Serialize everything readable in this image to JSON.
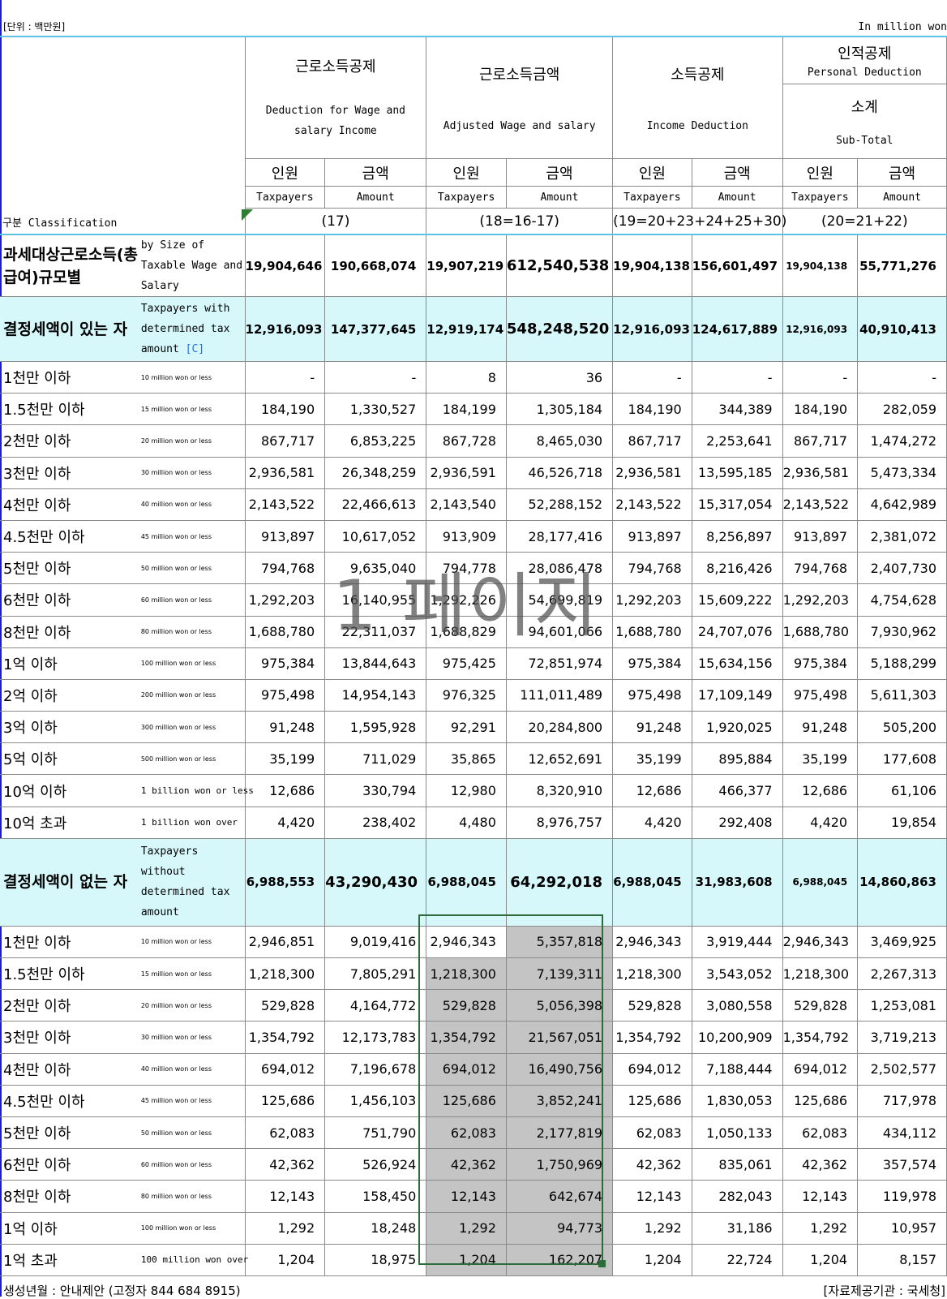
{
  "unit": {
    "ko": "[단위 : 백만원]",
    "en": "In million won"
  },
  "columns": {
    "c1": {
      "ko": "근로소득공제",
      "en": "Deduction for Wage and salary Income",
      "rule": "(17)"
    },
    "c2": {
      "ko": "근로소득금액",
      "en": "Adjusted Wage and salary",
      "rule": "(18=16-17)"
    },
    "c3": {
      "ko": "소득공제",
      "en": "Income Deduction",
      "rule": "(19=20+23+24+25+30)"
    },
    "c4": {
      "ko": "인적공제",
      "en": "Personal Deduction",
      "sub_ko": "소계",
      "sub_en": "Sub-Total",
      "rule": "(20=21+22)"
    },
    "sub": {
      "taxpayers_ko": "인원",
      "taxpayers_en": "Taxpayers",
      "amount_ko": "금액",
      "amount_en": "Amount"
    },
    "classification": "구분 Classification"
  },
  "rows": [
    {
      "ko": "과세대상근로소득(총급여)규모별",
      "en": "by Size of Taxable Wage and Salary",
      "v": [
        "19,904,646",
        "190,668,074",
        "19,907,219",
        "612,540,538",
        "19,904,138",
        "156,601,497",
        "19,904,138",
        "55,771,276"
      ]
    },
    {
      "ko": "결정세액이 있는 자",
      "en": "Taxpayers with determined tax amount",
      "tag": "[C]",
      "v": [
        "12,916,093",
        "147,377,645",
        "12,919,174",
        "548,248,520",
        "12,916,093",
        "124,617,889",
        "12,916,093",
        "40,910,413"
      ]
    },
    {
      "ko": "1천만 이하",
      "en": "10 million won or less",
      "v": [
        "-",
        "-",
        "8",
        "36",
        "-",
        "-",
        "-",
        "-"
      ]
    },
    {
      "ko": "1.5천만 이하",
      "en": "15 million won or less",
      "v": [
        "184,190",
        "1,330,527",
        "184,199",
        "1,305,184",
        "184,190",
        "344,389",
        "184,190",
        "282,059"
      ]
    },
    {
      "ko": "2천만 이하",
      "en": "20 million won or less",
      "v": [
        "867,717",
        "6,853,225",
        "867,728",
        "8,465,030",
        "867,717",
        "2,253,641",
        "867,717",
        "1,474,272"
      ]
    },
    {
      "ko": "3천만 이하",
      "en": "30 million won or less",
      "v": [
        "2,936,581",
        "26,348,259",
        "2,936,591",
        "46,526,718",
        "2,936,581",
        "13,595,185",
        "2,936,581",
        "5,473,334"
      ]
    },
    {
      "ko": "4천만 이하",
      "en": "40 million won or less",
      "v": [
        "2,143,522",
        "22,466,613",
        "2,143,540",
        "52,288,152",
        "2,143,522",
        "15,317,054",
        "2,143,522",
        "4,642,989"
      ]
    },
    {
      "ko": "4.5천만 이하",
      "en": "45 million won or less",
      "v": [
        "913,897",
        "10,617,052",
        "913,909",
        "28,177,416",
        "913,897",
        "8,256,897",
        "913,897",
        "2,381,072"
      ]
    },
    {
      "ko": "5천만 이하",
      "en": "50 million won or less",
      "v": [
        "794,768",
        "9,635,040",
        "794,778",
        "28,086,478",
        "794,768",
        "8,216,426",
        "794,768",
        "2,407,730"
      ]
    },
    {
      "ko": "6천만 이하",
      "en": "60 million won or less",
      "v": [
        "1,292,203",
        "16,140,955",
        "1,292,226",
        "54,699,819",
        "1,292,203",
        "15,609,222",
        "1,292,203",
        "4,754,628"
      ]
    },
    {
      "ko": "8천만 이하",
      "en": "80 million won or less",
      "v": [
        "1,688,780",
        "22,311,037",
        "1,688,829",
        "94,601,066",
        "1,688,780",
        "24,707,076",
        "1,688,780",
        "7,930,962"
      ]
    },
    {
      "ko": "1억 이하",
      "en": "100 million won or less",
      "v": [
        "975,384",
        "13,844,643",
        "975,425",
        "72,851,974",
        "975,384",
        "15,634,156",
        "975,384",
        "5,188,299"
      ]
    },
    {
      "ko": "2억 이하",
      "en": "200 million won or less",
      "v": [
        "975,498",
        "14,954,143",
        "976,325",
        "111,011,489",
        "975,498",
        "17,109,149",
        "975,498",
        "5,611,303"
      ]
    },
    {
      "ko": "3억 이하",
      "en": "300 million won or less",
      "v": [
        "91,248",
        "1,595,928",
        "92,291",
        "20,284,800",
        "91,248",
        "1,920,025",
        "91,248",
        "505,200"
      ]
    },
    {
      "ko": "5억 이하",
      "en": "500 million won or less",
      "v": [
        "35,199",
        "711,029",
        "35,865",
        "12,652,691",
        "35,199",
        "895,884",
        "35,199",
        "177,608"
      ]
    },
    {
      "ko": "10억 이하",
      "en": "1 billion won or less",
      "v": [
        "12,686",
        "330,794",
        "12,980",
        "8,320,910",
        "12,686",
        "466,377",
        "12,686",
        "61,106"
      ]
    },
    {
      "ko": "10억 초과",
      "en": "1 billion won over",
      "v": [
        "4,420",
        "238,402",
        "4,480",
        "8,976,757",
        "4,420",
        "292,408",
        "4,420",
        "19,854"
      ]
    },
    {
      "ko": "결정세액이 없는 자",
      "en": "Taxpayers without determined tax amount",
      "v": [
        "6,988,553",
        "43,290,430",
        "6,988,045",
        "64,292,018",
        "6,988,045",
        "31,983,608",
        "6,988,045",
        "14,860,863"
      ]
    },
    {
      "ko": "1천만 이하",
      "en": "10 million won or less",
      "v": [
        "2,946,851",
        "9,019,416",
        "2,946,343",
        "5,357,818",
        "2,946,343",
        "3,919,444",
        "2,946,343",
        "3,469,925"
      ]
    },
    {
      "ko": "1.5천만 이하",
      "en": "15 million won or less",
      "v": [
        "1,218,300",
        "7,805,291",
        "1,218,300",
        "7,139,311",
        "1,218,300",
        "3,543,052",
        "1,218,300",
        "2,267,313"
      ]
    },
    {
      "ko": "2천만 이하",
      "en": "20 million won or less",
      "v": [
        "529,828",
        "4,164,772",
        "529,828",
        "5,056,398",
        "529,828",
        "3,080,558",
        "529,828",
        "1,253,081"
      ]
    },
    {
      "ko": "3천만 이하",
      "en": "30 million won or less",
      "v": [
        "1,354,792",
        "12,173,783",
        "1,354,792",
        "21,567,051",
        "1,354,792",
        "10,200,909",
        "1,354,792",
        "3,719,213"
      ]
    },
    {
      "ko": "4천만 이하",
      "en": "40 million won or less",
      "v": [
        "694,012",
        "7,196,678",
        "694,012",
        "16,490,756",
        "694,012",
        "7,188,444",
        "694,012",
        "2,502,577"
      ]
    },
    {
      "ko": "4.5천만 이하",
      "en": "45 million won or less",
      "v": [
        "125,686",
        "1,456,103",
        "125,686",
        "3,852,241",
        "125,686",
        "1,830,053",
        "125,686",
        "717,978"
      ]
    },
    {
      "ko": "5천만 이하",
      "en": "50 million won or less",
      "v": [
        "62,083",
        "751,790",
        "62,083",
        "2,177,819",
        "62,083",
        "1,050,133",
        "62,083",
        "434,112"
      ]
    },
    {
      "ko": "6천만 이하",
      "en": "60 million won or less",
      "v": [
        "42,362",
        "526,924",
        "42,362",
        "1,750,969",
        "42,362",
        "835,061",
        "42,362",
        "357,574"
      ]
    },
    {
      "ko": "8천만 이하",
      "en": "80 million won or less",
      "v": [
        "12,143",
        "158,450",
        "12,143",
        "642,674",
        "12,143",
        "282,043",
        "12,143",
        "119,978"
      ]
    },
    {
      "ko": "1억 이하",
      "en": "100 million won or less",
      "v": [
        "1,292",
        "18,248",
        "1,292",
        "94,773",
        "1,292",
        "31,186",
        "1,292",
        "10,957"
      ]
    },
    {
      "ko": "1억 초과",
      "en": "100 million won over",
      "v": [
        "1,204",
        "18,975",
        "1,204",
        "162,207",
        "1,204",
        "22,724",
        "1,204",
        "8,157"
      ]
    }
  ],
  "watermark": "1 페이지",
  "footer": {
    "left": "생성년월 : 안내제안 (고정자 844 684 8915)",
    "right": "[자료제공기관 : 국세청]"
  },
  "colors": {
    "summary_bg": "#d7f8fb",
    "selection": "#2e6b3a",
    "selected_bg": "#c4c4c4",
    "accent_line": "#5bc3e6"
  }
}
